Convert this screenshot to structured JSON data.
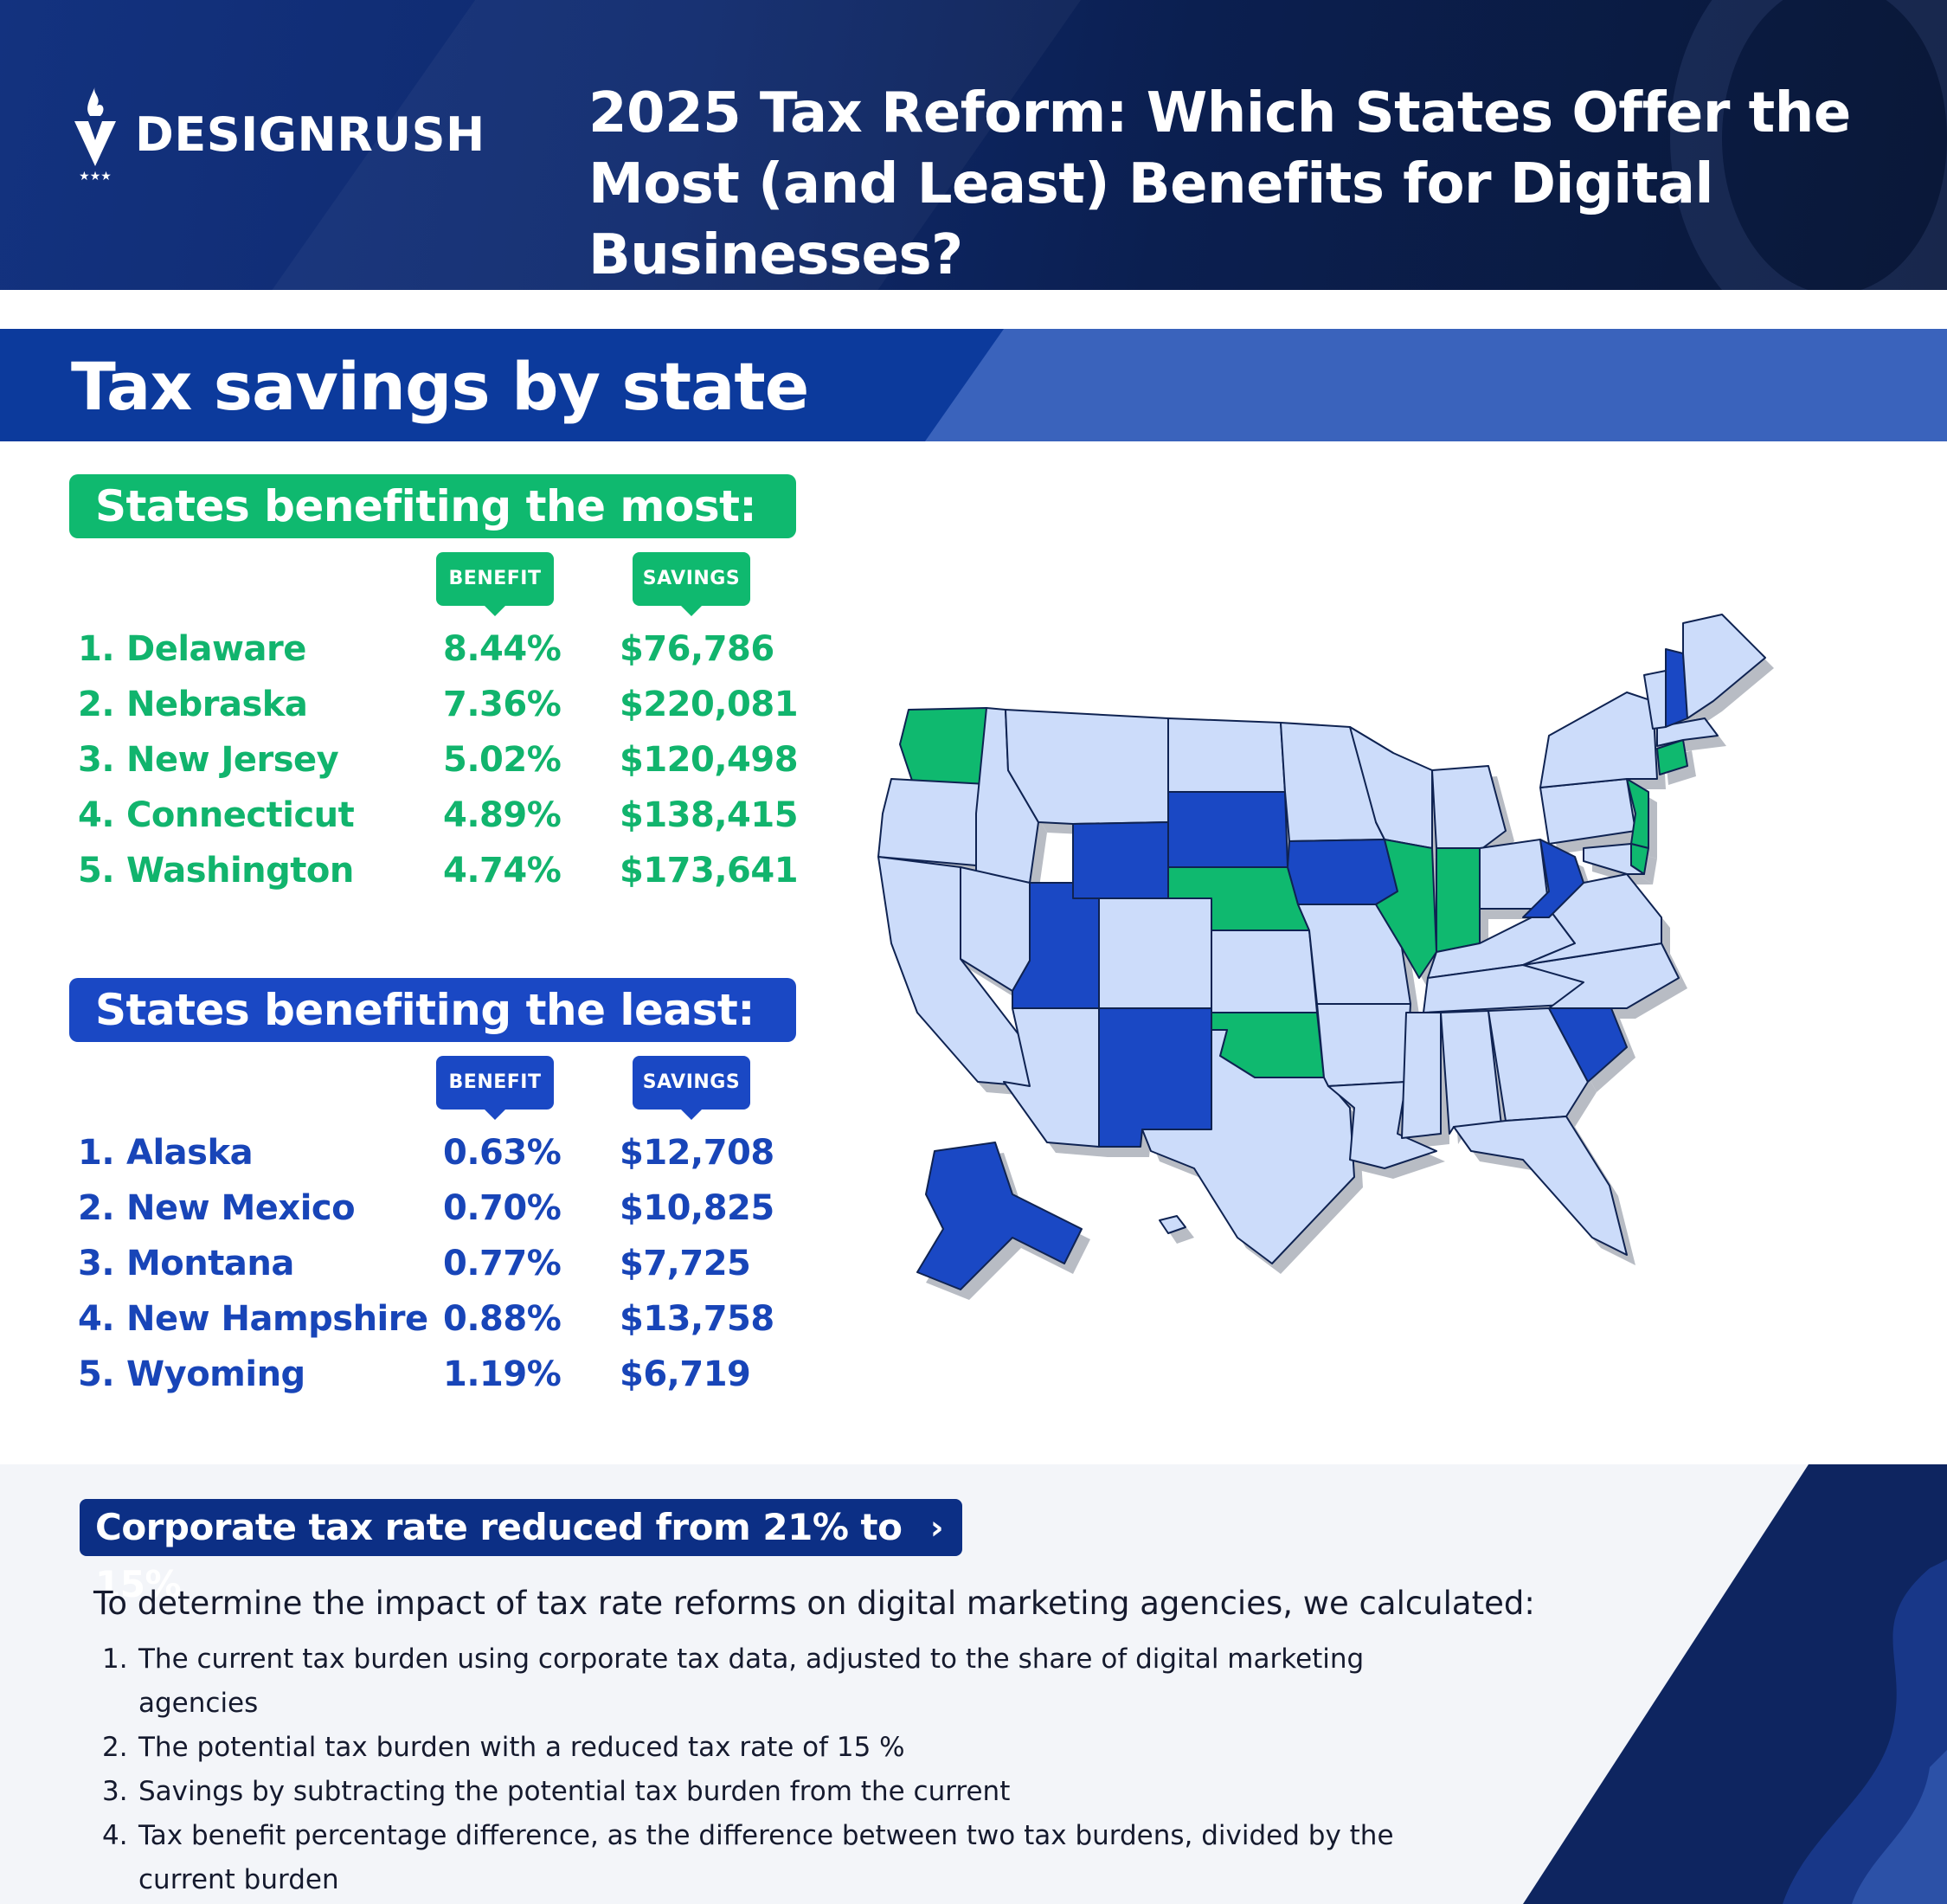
{
  "header": {
    "brand": "DESIGNRUSH",
    "title": "2025 Tax Reform: Which States Offer the Most (and Least) Benefits for Digital Businesses?"
  },
  "section": {
    "title": "Tax savings by state"
  },
  "most": {
    "heading": "States benefiting the most:",
    "benefit_label": "BENEFIT",
    "savings_label": "SAVINGS",
    "rows": [
      {
        "rank": "1.",
        "state": "Delaware",
        "benefit": "8.44%",
        "savings": "$76,786"
      },
      {
        "rank": "2.",
        "state": "Nebraska",
        "benefit": "7.36%",
        "savings": "$220,081"
      },
      {
        "rank": "3.",
        "state": "New Jersey",
        "benefit": "5.02%",
        "savings": "$120,498"
      },
      {
        "rank": "4.",
        "state": "Connecticut",
        "benefit": "4.89%",
        "savings": "$138,415"
      },
      {
        "rank": "5.",
        "state": "Washington",
        "benefit": "4.74%",
        "savings": "$173,641"
      }
    ]
  },
  "least": {
    "heading": "States benefiting the least:",
    "benefit_label": "BENEFIT",
    "savings_label": "SAVINGS",
    "rows": [
      {
        "rank": "1.",
        "state": "Alaska",
        "benefit": "0.63%",
        "savings": "$12,708"
      },
      {
        "rank": "2.",
        "state": "New Mexico",
        "benefit": "0.70%",
        "savings": "$10,825"
      },
      {
        "rank": "3.",
        "state": "Montana",
        "benefit": "0.77%",
        "savings": "$7,725"
      },
      {
        "rank": "4.",
        "state": "New Hampshire",
        "benefit": "0.88%",
        "savings": "$13,758"
      },
      {
        "rank": "5.",
        "state": "Wyoming",
        "benefit": "1.19%",
        "savings": "$6,719"
      }
    ]
  },
  "map": {
    "colors": {
      "most": "#0fb96f",
      "least": "#1a48c4",
      "other": "#ccdcfa",
      "stroke": "#0f2352",
      "shadow": "#b8bcc4"
    },
    "legend_groups": {
      "green": [
        "Washington",
        "Nebraska",
        "Oklahoma",
        "Illinois",
        "Indiana",
        "New Jersey",
        "Delaware",
        "Connecticut"
      ],
      "blue": [
        "Alaska",
        "Wyoming",
        "Utah",
        "New Mexico",
        "South Dakota",
        "Iowa",
        "West Virginia",
        "South Carolina",
        "New Hampshire"
      ]
    }
  },
  "methodology": {
    "callout": "Corporate tax rate reduced from 21% to 15%",
    "callout_icon": "chevron-right-icon",
    "intro": "To determine the impact of tax rate reforms on digital marketing agencies, we calculated:",
    "steps": [
      {
        "num": "1.",
        "text": "The current tax burden using corporate tax data, adjusted to the share of digital marketing agencies"
      },
      {
        "num": "2.",
        "text": "The potential tax burden with a reduced tax rate of 15 %"
      },
      {
        "num": "3.",
        "text": "Savings by subtracting the potential tax burden from the current"
      },
      {
        "num": "4.",
        "text": "Tax benefit percentage difference, as the difference between two tax burdens, divided by the current burden"
      }
    ]
  }
}
